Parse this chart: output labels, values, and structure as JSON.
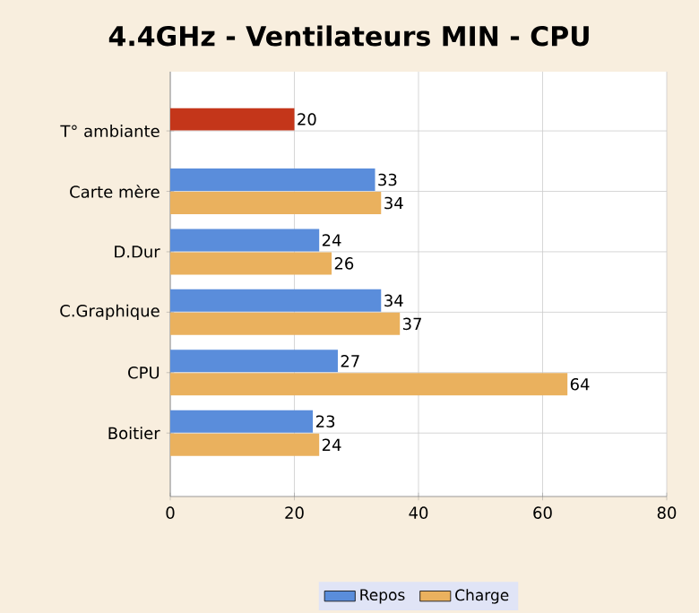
{
  "chart_data": {
    "type": "bar",
    "orientation": "horizontal",
    "title": "4.4GHz - Ventilateurs MIN - CPU",
    "categories": [
      "T° ambiante",
      "Carte mère",
      "D.Dur",
      "C.Graphique",
      "CPU",
      "Boitier"
    ],
    "series": [
      {
        "color": "#c4361a",
        "values": [
          20,
          null,
          null,
          null,
          null,
          null
        ]
      },
      {
        "name": "Repos",
        "color": "#5a8ddb",
        "values": [
          null,
          33,
          24,
          34,
          27,
          23
        ]
      },
      {
        "name": "Charge",
        "color": "#eab15e",
        "values": [
          null,
          34,
          26,
          37,
          64,
          24
        ]
      }
    ],
    "xlim": [
      0,
      80
    ],
    "xticks": [
      0,
      20,
      40,
      60,
      80
    ],
    "grid": true,
    "legend": "bottom",
    "data_labels": true
  }
}
